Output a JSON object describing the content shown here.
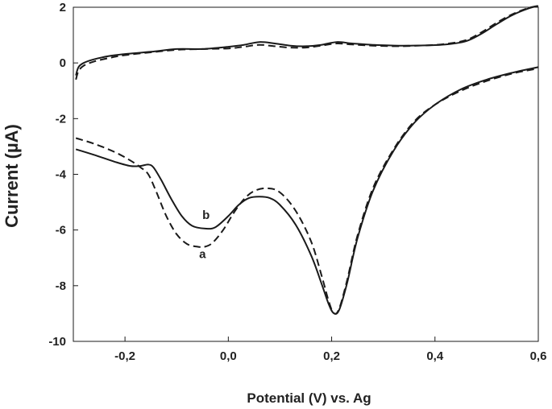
{
  "chart_data": {
    "type": "line",
    "title": "",
    "xlabel": "Potential (V) vs. Ag",
    "ylabel": "Current (µA)",
    "xlim": [
      -0.3,
      0.6
    ],
    "ylim": [
      -10,
      2
    ],
    "xticks": [
      -0.2,
      0.0,
      0.2,
      0.4,
      0.6
    ],
    "xtick_labels": [
      "-0,2",
      "0,0",
      "0,2",
      "0,4",
      "0,6"
    ],
    "yticks": [
      2,
      0,
      -2,
      -4,
      -6,
      -8,
      -10
    ],
    "ytick_labels": [
      "2",
      "0",
      "-2",
      "-4",
      "-6",
      "-8",
      "-10"
    ],
    "grid": false,
    "legend": "none",
    "series": [
      {
        "name": "a",
        "style": "dashed",
        "color": "#1a1a1a",
        "label_at": [
          -0.05,
          -7.0
        ],
        "forward": [
          [
            -0.295,
            -2.7
          ],
          [
            -0.26,
            -2.9
          ],
          [
            -0.22,
            -3.2
          ],
          [
            -0.19,
            -3.5
          ],
          [
            -0.17,
            -3.75
          ],
          [
            -0.155,
            -4.0
          ],
          [
            -0.14,
            -4.6
          ],
          [
            -0.12,
            -5.5
          ],
          [
            -0.1,
            -6.15
          ],
          [
            -0.08,
            -6.5
          ],
          [
            -0.06,
            -6.6
          ],
          [
            -0.045,
            -6.6
          ],
          [
            -0.03,
            -6.45
          ],
          [
            -0.01,
            -6.0
          ],
          [
            0.01,
            -5.4
          ],
          [
            0.03,
            -4.9
          ],
          [
            0.05,
            -4.6
          ],
          [
            0.075,
            -4.5
          ],
          [
            0.1,
            -4.65
          ],
          [
            0.13,
            -5.3
          ],
          [
            0.16,
            -6.4
          ],
          [
            0.18,
            -7.6
          ],
          [
            0.195,
            -8.6
          ],
          [
            0.205,
            -9.0
          ],
          [
            0.215,
            -8.8
          ],
          [
            0.23,
            -7.8
          ],
          [
            0.25,
            -6.2
          ],
          [
            0.28,
            -4.5
          ],
          [
            0.32,
            -3.1
          ],
          [
            0.36,
            -2.1
          ],
          [
            0.4,
            -1.5
          ],
          [
            0.45,
            -1.0
          ],
          [
            0.5,
            -0.65
          ],
          [
            0.55,
            -0.38
          ],
          [
            0.6,
            -0.2
          ]
        ],
        "reverse": [
          [
            -0.295,
            -0.6
          ],
          [
            -0.29,
            -0.3
          ],
          [
            -0.28,
            -0.1
          ],
          [
            -0.26,
            0.05
          ],
          [
            -0.23,
            0.18
          ],
          [
            -0.2,
            0.28
          ],
          [
            -0.15,
            0.38
          ],
          [
            -0.1,
            0.47
          ],
          [
            -0.05,
            0.5
          ],
          [
            0.0,
            0.52
          ],
          [
            0.03,
            0.58
          ],
          [
            0.06,
            0.65
          ],
          [
            0.09,
            0.6
          ],
          [
            0.12,
            0.55
          ],
          [
            0.15,
            0.55
          ],
          [
            0.18,
            0.62
          ],
          [
            0.21,
            0.7
          ],
          [
            0.24,
            0.66
          ],
          [
            0.28,
            0.62
          ],
          [
            0.33,
            0.6
          ],
          [
            0.38,
            0.63
          ],
          [
            0.42,
            0.68
          ],
          [
            0.46,
            0.82
          ],
          [
            0.49,
            1.1
          ],
          [
            0.52,
            1.45
          ],
          [
            0.55,
            1.75
          ],
          [
            0.58,
            1.97
          ],
          [
            0.6,
            2.05
          ]
        ]
      },
      {
        "name": "b",
        "style": "solid",
        "color": "#1a1a1a",
        "label_at": [
          -0.043,
          -5.6
        ],
        "forward": [
          [
            -0.295,
            -3.1
          ],
          [
            -0.26,
            -3.3
          ],
          [
            -0.22,
            -3.55
          ],
          [
            -0.19,
            -3.7
          ],
          [
            -0.17,
            -3.7
          ],
          [
            -0.155,
            -3.65
          ],
          [
            -0.145,
            -3.75
          ],
          [
            -0.13,
            -4.2
          ],
          [
            -0.11,
            -4.9
          ],
          [
            -0.09,
            -5.5
          ],
          [
            -0.07,
            -5.85
          ],
          [
            -0.045,
            -5.95
          ],
          [
            -0.025,
            -5.9
          ],
          [
            0.0,
            -5.5
          ],
          [
            0.02,
            -5.1
          ],
          [
            0.04,
            -4.85
          ],
          [
            0.06,
            -4.8
          ],
          [
            0.08,
            -4.85
          ],
          [
            0.1,
            -5.1
          ],
          [
            0.13,
            -5.8
          ],
          [
            0.16,
            -6.9
          ],
          [
            0.18,
            -7.9
          ],
          [
            0.195,
            -8.7
          ],
          [
            0.205,
            -9.0
          ],
          [
            0.215,
            -8.85
          ],
          [
            0.23,
            -7.9
          ],
          [
            0.25,
            -6.3
          ],
          [
            0.28,
            -4.6
          ],
          [
            0.32,
            -3.15
          ],
          [
            0.36,
            -2.15
          ],
          [
            0.4,
            -1.5
          ],
          [
            0.45,
            -0.95
          ],
          [
            0.5,
            -0.6
          ],
          [
            0.55,
            -0.35
          ],
          [
            0.6,
            -0.15
          ]
        ],
        "reverse": [
          [
            -0.295,
            -0.45
          ],
          [
            -0.29,
            -0.15
          ],
          [
            -0.28,
            0.0
          ],
          [
            -0.26,
            0.13
          ],
          [
            -0.23,
            0.25
          ],
          [
            -0.2,
            0.32
          ],
          [
            -0.15,
            0.4
          ],
          [
            -0.1,
            0.5
          ],
          [
            -0.05,
            0.5
          ],
          [
            0.0,
            0.58
          ],
          [
            0.03,
            0.65
          ],
          [
            0.06,
            0.75
          ],
          [
            0.09,
            0.7
          ],
          [
            0.12,
            0.62
          ],
          [
            0.15,
            0.6
          ],
          [
            0.18,
            0.65
          ],
          [
            0.21,
            0.75
          ],
          [
            0.24,
            0.7
          ],
          [
            0.28,
            0.65
          ],
          [
            0.33,
            0.62
          ],
          [
            0.38,
            0.63
          ],
          [
            0.42,
            0.66
          ],
          [
            0.46,
            0.78
          ],
          [
            0.49,
            1.05
          ],
          [
            0.52,
            1.4
          ],
          [
            0.55,
            1.72
          ],
          [
            0.58,
            1.95
          ],
          [
            0.6,
            2.05
          ]
        ]
      }
    ]
  }
}
